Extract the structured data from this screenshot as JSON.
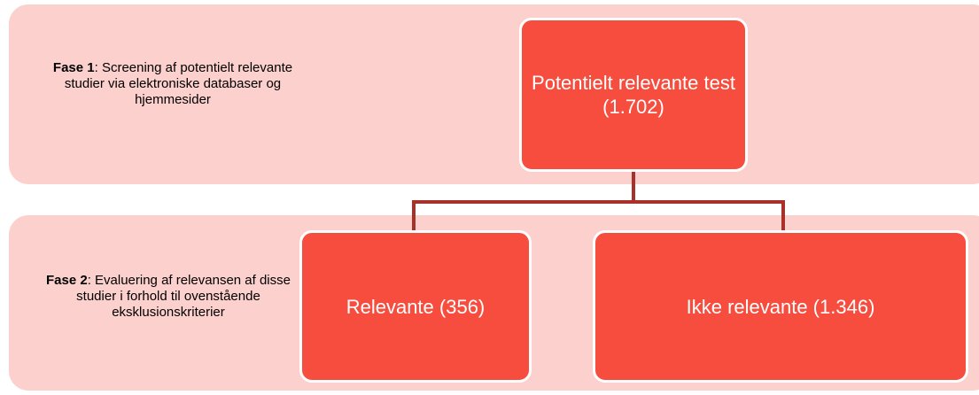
{
  "phases": [
    {
      "label": "Fase 1",
      "text": ": Screening af potentielt relevante studier via elektroniske databaser og hjemmesider"
    },
    {
      "label": "Fase 2",
      "text": ": Evaluering af relevansen af disse studier i forhold til ovenstående eksklusionskriterier"
    }
  ],
  "nodes": [
    {
      "label": "Potentielt relevante test (1.702)"
    },
    {
      "label": "Relevante (356)"
    },
    {
      "label": "Ikke relevante (1.346)"
    }
  ]
}
